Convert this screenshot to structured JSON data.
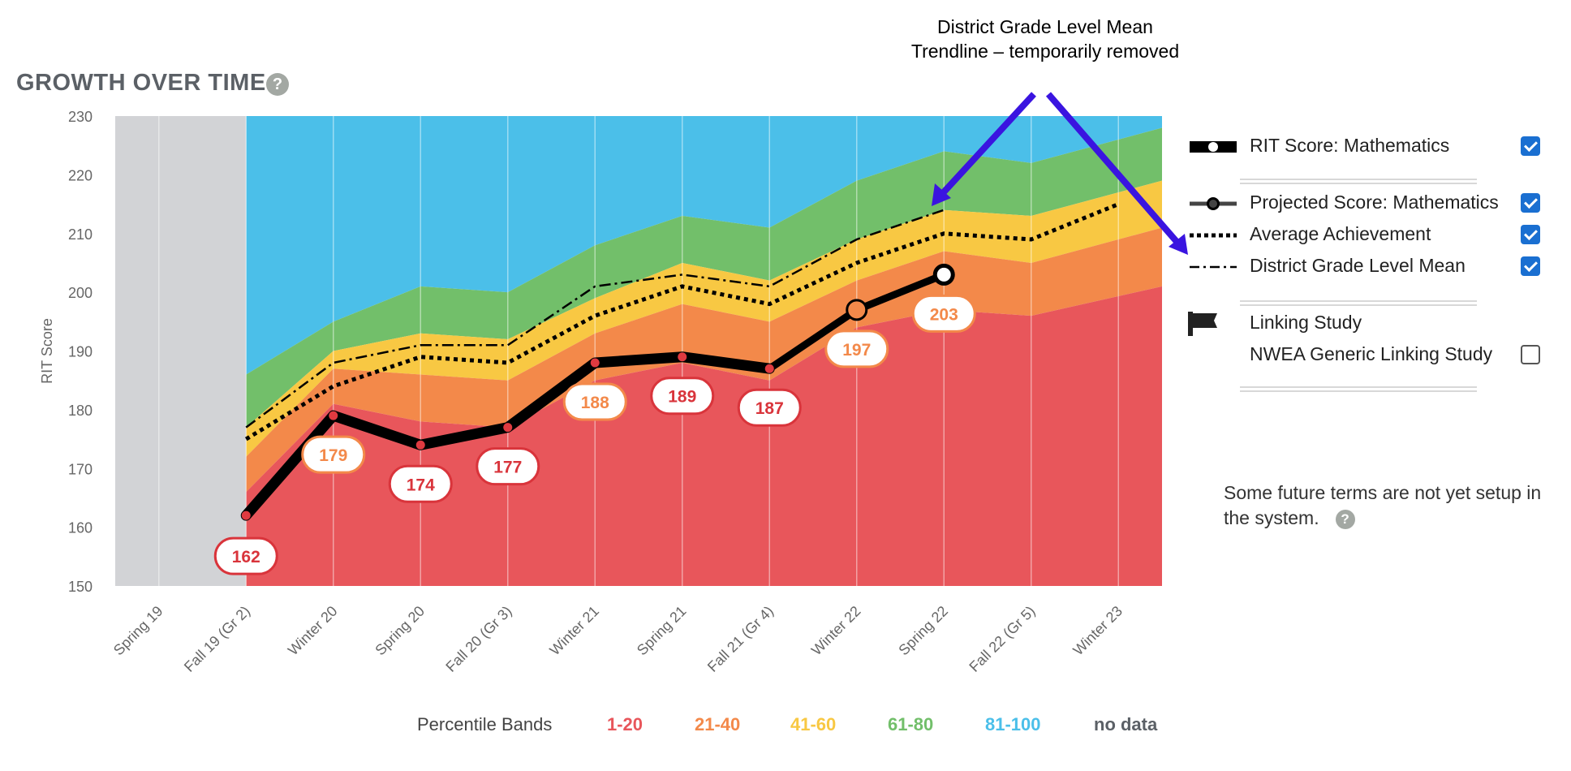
{
  "header": {
    "title": "GROWTH OVER TIME",
    "help": "?"
  },
  "callout": {
    "text": "District Grade Level Mean Trendline – temporarily removed"
  },
  "legend": {
    "items": [
      {
        "label": "RIT Score: Mathematics",
        "checked": true,
        "symbol": "rit"
      },
      {
        "label": "Projected Score: Mathematics",
        "checked": true,
        "symbol": "projected"
      },
      {
        "label": "Average Achievement",
        "checked": true,
        "symbol": "dotted"
      },
      {
        "label": "District Grade Level Mean",
        "checked": true,
        "symbol": "dashdot"
      }
    ],
    "linking": {
      "label": "Linking Study",
      "icon": "flag-icon"
    },
    "nwea": {
      "label": "NWEA Generic Linking Study",
      "checked": false
    }
  },
  "note": {
    "text": "Some future terms are not yet setup in the system.",
    "help": "?"
  },
  "percentile_bands": {
    "header": "Percentile Bands",
    "items": [
      {
        "label": "1-20",
        "color": "#e8565b"
      },
      {
        "label": "21-40",
        "color": "#f3894a"
      },
      {
        "label": "41-60",
        "color": "#f8c843"
      },
      {
        "label": "61-80",
        "color": "#72bf6a"
      },
      {
        "label": "81-100",
        "color": "#4bbfe9"
      },
      {
        "label": "no data",
        "color": "#5b6066"
      }
    ]
  },
  "chart_data": {
    "type": "area",
    "ylabel": "RIT Score",
    "ylim": [
      150,
      230
    ],
    "yticks": [
      150,
      160,
      170,
      180,
      190,
      200,
      210,
      220,
      230
    ],
    "categories": [
      "Spring 19",
      "Fall 19 (Gr 2)",
      "Winter 20",
      "Spring 20",
      "Fall 20 (Gr 3)",
      "Winter 21",
      "Spring 21",
      "Fall 21 (Gr 4)",
      "Winter 22",
      "Spring 22",
      "Fall 22 (Gr 5)",
      "Winter 23"
    ],
    "no_data_categories": [
      "Spring 19"
    ],
    "band_colors": [
      "#e8565b",
      "#f3894a",
      "#f8c843",
      "#72bf6a",
      "#4bbfe9"
    ],
    "band_upper_bounds": {
      "p20": [
        null,
        166,
        181,
        178,
        177,
        185,
        188,
        185,
        194,
        197,
        196,
        201
      ],
      "p40": [
        null,
        172,
        187,
        186,
        185,
        193,
        198,
        195,
        202,
        207,
        205,
        211
      ],
      "p60": [
        null,
        177,
        190,
        193,
        192,
        199,
        205,
        202,
        209,
        214,
        213,
        219
      ],
      "p80": [
        null,
        186,
        195,
        201,
        200,
        208,
        213,
        211,
        219,
        224,
        222,
        228
      ],
      "p100": [
        null,
        230,
        230,
        230,
        230,
        230,
        230,
        230,
        230,
        230,
        230,
        230
      ]
    },
    "series": [
      {
        "name": "RIT Score: Mathematics",
        "values": [
          null,
          162,
          179,
          174,
          177,
          188,
          189,
          187,
          null,
          null,
          null,
          null
        ],
        "color": "#000000"
      },
      {
        "name": "Projected Score: Mathematics",
        "values": [
          null,
          null,
          null,
          null,
          null,
          null,
          null,
          187,
          197,
          203,
          null,
          null
        ],
        "color": "#000000"
      },
      {
        "name": "Average Achievement",
        "values": [
          null,
          175,
          184,
          189,
          188,
          196,
          201,
          198,
          205,
          210,
          209,
          215
        ],
        "color": "#000000"
      },
      {
        "name": "District Grade Level Mean",
        "values": [
          null,
          177,
          188,
          191,
          191,
          201,
          203,
          201,
          209,
          214,
          null,
          null
        ],
        "color": "#000000"
      }
    ],
    "data_labels": [
      {
        "index": 1,
        "value": "162",
        "band": "1-20"
      },
      {
        "index": 2,
        "value": "179",
        "band": "21-40"
      },
      {
        "index": 3,
        "value": "174",
        "band": "1-20"
      },
      {
        "index": 4,
        "value": "177",
        "band": "1-20"
      },
      {
        "index": 5,
        "value": "188",
        "band": "21-40"
      },
      {
        "index": 6,
        "value": "189",
        "band": "1-20"
      },
      {
        "index": 7,
        "value": "187",
        "band": "1-20"
      },
      {
        "index": 8,
        "value": "197",
        "band": "21-40"
      },
      {
        "index": 9,
        "value": "203",
        "band": "21-40"
      }
    ],
    "grid": true,
    "legend_position": "right"
  }
}
